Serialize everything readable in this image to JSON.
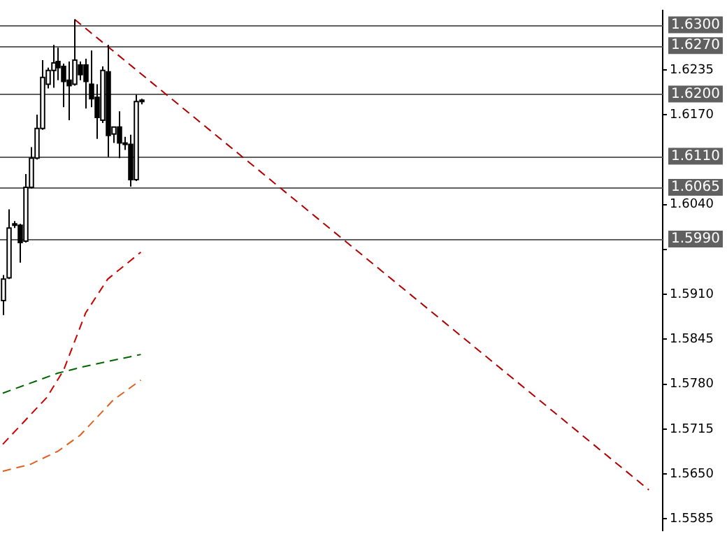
{
  "chart_data": {
    "type": "candlestick",
    "categories": [
      null,
      null,
      null,
      null,
      null,
      null,
      null,
      null,
      null,
      null,
      null,
      null,
      null,
      null,
      null,
      null,
      null,
      null,
      null,
      null,
      null,
      null,
      null,
      null,
      null,
      null,
      null,
      null,
      null,
      null,
      null,
      null,
      null,
      null,
      null,
      null,
      null,
      null,
      null,
      null,
      null,
      null,
      null,
      null,
      null,
      null,
      null,
      null,
      null,
      null,
      null,
      null,
      null,
      null,
      null,
      null,
      null,
      null,
      null,
      null,
      null,
      null,
      null,
      null,
      null,
      null,
      null,
      null,
      null,
      null,
      null,
      null,
      null,
      null,
      null,
      null,
      null,
      null,
      null,
      null,
      null,
      null,
      null,
      null,
      null,
      null,
      null,
      null,
      null,
      null,
      null,
      null,
      null,
      null,
      null,
      null,
      null,
      null,
      null,
      null,
      null,
      null,
      null,
      null,
      null,
      null,
      null,
      null,
      null,
      null,
      null,
      null,
      null,
      null,
      null,
      null,
      null,
      null,
      null,
      null
    ],
    "ohlc": [
      [
        1.5901,
        1.5938,
        1.588,
        1.5932
      ],
      [
        1.5934,
        1.6033,
        1.5932,
        1.6006
      ],
      [
        1.6012,
        1.6016,
        1.6006,
        1.601
      ],
      [
        1.601,
        1.6012,
        1.5956,
        1.5985
      ],
      [
        1.5987,
        1.6084,
        1.5985,
        1.6065
      ],
      [
        1.6065,
        1.6123,
        1.6063,
        1.6107
      ],
      [
        1.6107,
        1.617,
        1.6105,
        1.615
      ],
      [
        1.615,
        1.6249,
        1.6148,
        1.6224
      ],
      [
        1.6214,
        1.6238,
        1.6208,
        1.6234
      ],
      [
        1.6234,
        1.6271,
        1.6209,
        1.6245
      ],
      [
        1.6247,
        1.6267,
        1.622,
        1.6238
      ],
      [
        1.624,
        1.6244,
        1.6181,
        1.6218
      ],
      [
        1.622,
        1.6247,
        1.6162,
        1.6212
      ],
      [
        1.6214,
        1.6308,
        1.6212,
        1.6249
      ],
      [
        1.6242,
        1.6247,
        1.622,
        1.6228
      ],
      [
        1.6242,
        1.6251,
        1.6179,
        1.6218
      ],
      [
        1.6214,
        1.6263,
        1.6181,
        1.6193
      ],
      [
        1.6195,
        1.6214,
        1.6135,
        1.6166
      ],
      [
        1.6162,
        1.624,
        1.6158,
        1.6234
      ],
      [
        1.6232,
        1.6271,
        1.6109,
        1.614
      ],
      [
        1.6142,
        1.6152,
        1.6129,
        1.6152
      ],
      [
        1.6152,
        1.6175,
        1.6107,
        1.6129
      ],
      [
        1.6129,
        1.6138,
        1.6119,
        1.6129
      ],
      [
        1.6127,
        1.6141,
        1.6066,
        1.6076
      ],
      [
        1.6076,
        1.6199,
        1.6074,
        1.6189
      ],
      [
        1.6191,
        1.6193,
        1.6185,
        1.6191
      ],
      null,
      null,
      null,
      null,
      null,
      null,
      null,
      null,
      null,
      null,
      null,
      null,
      null,
      null,
      null,
      null,
      null,
      null,
      null,
      null,
      null,
      null,
      null,
      null,
      null,
      null,
      null,
      null,
      null,
      null,
      null,
      null,
      null,
      null,
      null,
      null,
      null,
      null,
      null,
      null,
      null,
      null,
      null,
      null,
      null,
      null,
      null,
      null,
      null,
      null,
      null,
      null,
      null,
      null,
      null,
      null,
      null,
      null,
      null,
      null,
      null,
      null,
      null,
      null,
      null,
      null,
      null,
      null,
      null,
      null,
      null,
      null,
      null,
      null,
      null,
      null,
      null,
      null,
      null,
      null,
      null,
      null,
      null,
      null,
      null,
      null,
      null,
      null,
      null,
      null,
      null,
      null,
      null,
      null
    ],
    "series": [
      {
        "type": "line",
        "color": "#cc0000",
        "line_style": "dashed",
        "values": [
          1.5693,
          null,
          null,
          null,
          null,
          null,
          null,
          null,
          1.5761,
          null,
          null,
          1.58,
          null,
          null,
          null,
          1.5883,
          null,
          null,
          null,
          1.5932,
          null,
          null,
          null,
          null,
          null,
          1.5971,
          null,
          null,
          null,
          null,
          null,
          null,
          null,
          null,
          null,
          null,
          null,
          null,
          null,
          null,
          null,
          null,
          null,
          null,
          null,
          null,
          null,
          null,
          null,
          null,
          null,
          null,
          null,
          null,
          null,
          null,
          null,
          null,
          null,
          null,
          null,
          null,
          null,
          null,
          null,
          null,
          null,
          null,
          null,
          null,
          null,
          null,
          null,
          null,
          null,
          null,
          null,
          null,
          null,
          null,
          null,
          null,
          null,
          null,
          null,
          null,
          null,
          null,
          null,
          null,
          null,
          null,
          null,
          null,
          null,
          null,
          null,
          null,
          null,
          null,
          null,
          null,
          null,
          null,
          null,
          null,
          null,
          null,
          null,
          null,
          null,
          null,
          null,
          null,
          null,
          null,
          null,
          null,
          null,
          null
        ]
      },
      {
        "type": "line",
        "color": "#006400",
        "line_style": "dashed",
        "values": [
          1.5767,
          null,
          null,
          null,
          null,
          null,
          null,
          null,
          null,
          null,
          1.5796,
          null,
          null,
          null,
          null,
          1.5806,
          null,
          null,
          null,
          null,
          null,
          null,
          null,
          null,
          null,
          1.5823,
          null,
          null,
          null,
          null,
          null,
          null,
          null,
          null,
          null,
          null,
          null,
          null,
          null,
          null,
          null,
          null,
          null,
          null,
          null,
          null,
          null,
          null,
          null,
          null,
          null,
          null,
          null,
          null,
          null,
          null,
          null,
          null,
          null,
          null,
          null,
          null,
          null,
          null,
          null,
          null,
          null,
          null,
          null,
          null,
          null,
          null,
          null,
          null,
          null,
          null,
          null,
          null,
          null,
          null,
          null,
          null,
          null,
          null,
          null,
          null,
          null,
          null,
          null,
          null,
          null,
          null,
          null,
          null,
          null,
          null,
          null,
          null,
          null,
          null,
          null,
          null,
          null,
          null,
          null,
          null,
          null,
          null,
          null,
          null,
          null,
          null,
          null,
          null,
          null,
          null,
          null,
          null,
          null,
          null
        ]
      },
      {
        "type": "line",
        "color": "#e06020",
        "line_style": "dashed",
        "values": [
          1.5654,
          null,
          null,
          null,
          null,
          1.5664,
          null,
          null,
          null,
          null,
          1.5683,
          null,
          null,
          null,
          1.5706,
          null,
          null,
          null,
          null,
          null,
          1.5757,
          null,
          null,
          null,
          null,
          1.5786,
          null,
          null,
          null,
          null,
          null,
          null,
          null,
          null,
          null,
          null,
          null,
          null,
          null,
          null,
          null,
          null,
          null,
          null,
          null,
          null,
          null,
          null,
          null,
          null,
          null,
          null,
          null,
          null,
          null,
          null,
          null,
          null,
          null,
          null,
          null,
          null,
          null,
          null,
          null,
          null,
          null,
          null,
          null,
          null,
          null,
          null,
          null,
          null,
          null,
          null,
          null,
          null,
          null,
          null,
          null,
          null,
          null,
          null,
          null,
          null,
          null,
          null,
          null,
          null,
          null,
          null,
          null,
          null,
          null,
          null,
          null,
          null,
          null,
          null,
          null,
          null,
          null,
          null,
          null,
          null,
          null,
          null,
          null,
          null,
          null,
          null,
          null,
          null,
          null,
          null,
          null,
          null,
          null,
          null
        ]
      },
      {
        "type": "line",
        "color": "#b00000",
        "line_style": "dashed",
        "values": [
          null,
          null,
          null,
          null,
          null,
          null,
          null,
          null,
          null,
          null,
          null,
          null,
          null,
          1.6308,
          null,
          null,
          null,
          null,
          null,
          null,
          null,
          null,
          null,
          null,
          null,
          null,
          null,
          null,
          null,
          null,
          null,
          null,
          null,
          null,
          null,
          null,
          null,
          null,
          null,
          null,
          null,
          null,
          null,
          null,
          null,
          null,
          null,
          null,
          null,
          null,
          null,
          null,
          null,
          null,
          null,
          null,
          null,
          null,
          null,
          null,
          null,
          null,
          null,
          null,
          null,
          null,
          null,
          null,
          null,
          null,
          null,
          null,
          null,
          null,
          null,
          null,
          null,
          null,
          null,
          null,
          null,
          null,
          null,
          null,
          null,
          null,
          null,
          null,
          null,
          null,
          null,
          null,
          null,
          null,
          null,
          null,
          null,
          null,
          null,
          null,
          null,
          null,
          null,
          null,
          null,
          null,
          null,
          null,
          null,
          null,
          null,
          null,
          null,
          null,
          null,
          null,
          null,
          1.5627,
          null,
          null
        ]
      }
    ],
    "ylim": [
      1.5568,
      1.6321
    ],
    "yticks": [
      1.5585,
      {
        "value": 1.565,
        "label": "1.5650"
      },
      1.5715,
      {
        "value": 1.578,
        "label": "1.5780"
      },
      1.5845,
      {
        "value": 1.591,
        "label": "1.5910"
      },
      {
        "value": 1.5975,
        "label": null
      },
      {
        "value": 1.604,
        "label": "1.6040"
      },
      {
        "value": 1.617,
        "label": "1.6170"
      },
      1.6235
    ],
    "ref_lines": [
      {
        "axis": "y",
        "value": 1.63,
        "label": "1.6300",
        "color": "#606060"
      },
      {
        "axis": "y",
        "value": 1.627,
        "label": "1.6270",
        "color": "#606060"
      },
      {
        "axis": "y",
        "value": 1.62,
        "label": "1.6200",
        "color": "#606060"
      },
      {
        "axis": "y",
        "value": 1.611,
        "label": "1.6110",
        "color": "#606060"
      },
      {
        "axis": "y",
        "value": 1.6065,
        "label": "1.6065",
        "color": "#606060"
      },
      {
        "axis": "y",
        "value": 1.599,
        "label": "1.5990",
        "color": "#606060"
      }
    ],
    "tick_labels": "y",
    "grid": false,
    "legend": false
  }
}
